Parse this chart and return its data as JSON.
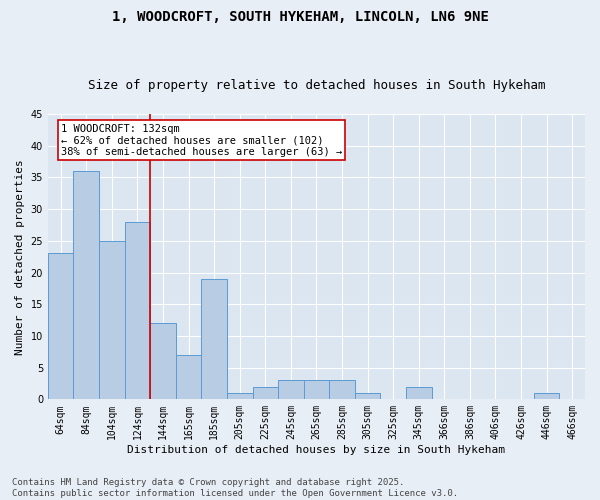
{
  "title": "1, WOODCROFT, SOUTH HYKEHAM, LINCOLN, LN6 9NE",
  "subtitle": "Size of property relative to detached houses in South Hykeham",
  "xlabel": "Distribution of detached houses by size in South Hykeham",
  "ylabel": "Number of detached properties",
  "categories": [
    "64sqm",
    "84sqm",
    "104sqm",
    "124sqm",
    "144sqm",
    "165sqm",
    "185sqm",
    "205sqm",
    "225sqm",
    "245sqm",
    "265sqm",
    "285sqm",
    "305sqm",
    "325sqm",
    "345sqm",
    "366sqm",
    "386sqm",
    "406sqm",
    "426sqm",
    "446sqm",
    "466sqm"
  ],
  "values": [
    23,
    36,
    25,
    28,
    12,
    7,
    19,
    1,
    2,
    3,
    3,
    3,
    1,
    0,
    2,
    0,
    0,
    0,
    0,
    1,
    0
  ],
  "bar_color": "#b8cce4",
  "bar_edge_color": "#5b9bd5",
  "background_color": "#dce6f1",
  "fig_background_color": "#e8eef5",
  "grid_color": "#ffffff",
  "vline_x": 3.5,
  "vline_color": "#cc0000",
  "annotation_text": "1 WOODCROFT: 132sqm\n← 62% of detached houses are smaller (102)\n38% of semi-detached houses are larger (63) →",
  "annotation_box_color": "#cc0000",
  "ylim": [
    0,
    45
  ],
  "yticks": [
    0,
    5,
    10,
    15,
    20,
    25,
    30,
    35,
    40,
    45
  ],
  "footer": "Contains HM Land Registry data © Crown copyright and database right 2025.\nContains public sector information licensed under the Open Government Licence v3.0.",
  "title_fontsize": 10,
  "subtitle_fontsize": 9,
  "axis_label_fontsize": 8,
  "tick_fontsize": 7,
  "annotation_fontsize": 7.5,
  "footer_fontsize": 6.5
}
